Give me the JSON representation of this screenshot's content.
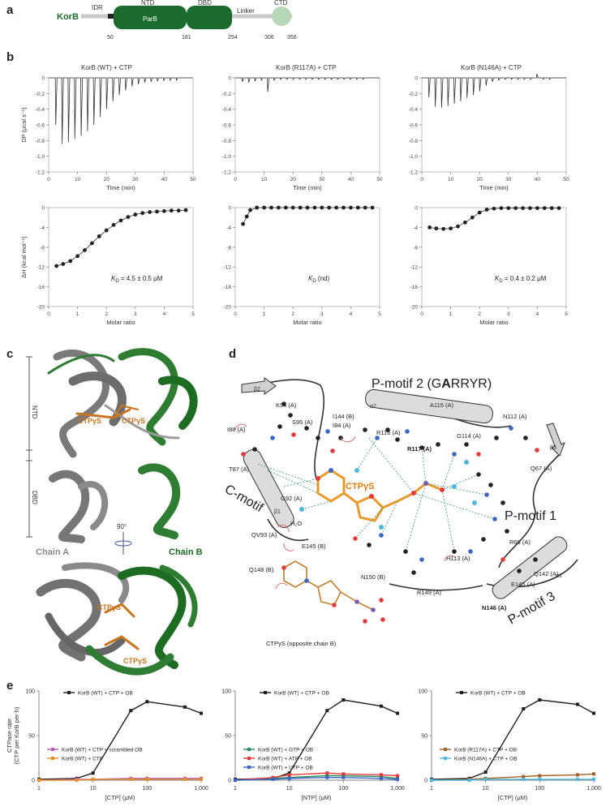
{
  "panels": {
    "a": "a",
    "b": "b",
    "c": "c",
    "d": "d",
    "e": "e"
  },
  "domain_panel": {
    "protein": "KorB",
    "segments": [
      {
        "name": "IDR",
        "kind": "line"
      },
      {
        "name": "NTD",
        "sub": "ParB",
        "kind": "box"
      },
      {
        "name": "DBD",
        "kind": "box"
      },
      {
        "name": "Linker",
        "kind": "line"
      },
      {
        "name": "CTD",
        "kind": "circle"
      }
    ],
    "positions": [
      {
        "label": "50",
        "value": 50
      },
      {
        "label": "181",
        "value": 181
      },
      {
        "label": "254",
        "value": 254
      },
      {
        "label": "306",
        "value": 306
      },
      {
        "label": "358",
        "value": 358
      }
    ]
  },
  "itc_titles": [
    "KorB (WT) + CTP",
    "KorB (R117A) + CTP",
    "KorB (N146A) + CTP"
  ],
  "itc_raw_axes": {
    "ylabel": "DP (μcal s⁻¹)",
    "xlabel": "Time (min)",
    "yticks": [
      "0",
      "-0.2",
      "-0.4",
      "-0.6",
      "-0.8",
      "-1.0",
      "-1.2"
    ],
    "xticks": [
      "0",
      "10",
      "20",
      "30",
      "40",
      "50"
    ]
  },
  "itc_iso_axes": {
    "ylabel": "ΔH (kcal mol⁻¹)",
    "xlabel": "Molar ratio",
    "yticks": [
      "0",
      "-4",
      "-8",
      "-12",
      "-16",
      "-20"
    ],
    "xticks": [
      "0",
      "1",
      "2",
      "3",
      "4",
      "5"
    ]
  },
  "kd_labels": [
    {
      "k": "K",
      "sub": "D",
      "rest": " = 4.5 ± 0.5 μM"
    },
    {
      "k": "K",
      "sub": "D",
      "rest": " (nd)"
    },
    {
      "k": "K",
      "sub": "D",
      "rest": " = 0.4 ± 0.2 μM"
    }
  ],
  "structure": {
    "ntd": "NTD",
    "dbd": "DBD",
    "ctp1": "CTPγS",
    "ctp2": "CTPγS",
    "ctp3": "CTPγS",
    "ctp4": "CTPγS",
    "rot": "90°",
    "chainA": "Chain A",
    "chainB": "Chain B"
  },
  "interaction_map": {
    "motif2_prefix": "P-motif 2 (G",
    "motif2_bold": "A",
    "motif2_suffix": "RRYR)",
    "motif1": "P-motif 1",
    "motif3": "P-motif 3",
    "cmotif": "C-motif",
    "ctp": "CTPγS",
    "ctp_opp": "CTPγS (opposite chain B)",
    "water": "H₂O",
    "helix_labels": [
      "β2",
      "α2",
      "β1",
      "α1",
      "β3"
    ],
    "residues": [
      "K94 (A)",
      "I88 (A)",
      "S95 (A)",
      "I144 (B)",
      "I84 (A)",
      "A115 (A)",
      "N112 (A)",
      "R116 (A)",
      "R117 (A)",
      "G114 (A)",
      "T87 (A)",
      "Q67 (A)",
      "G92 (A)",
      "QV93 (A)",
      "E145 (B)",
      "R69 (A)",
      "Q148 (B)",
      "H113 (A)",
      "N150 (B)",
      "Q142 (A)",
      "E145 (A)",
      "R149 (A)",
      "N146 (A)"
    ]
  },
  "chart_data": [
    {
      "type": "line",
      "ylabel": "CTPase rate\n(CTP per KorB per h)",
      "xlabel": "[CTP] (μM)",
      "xscale": "log",
      "xlim": [
        1,
        1000
      ],
      "ylim": [
        0,
        100
      ],
      "xticks": [
        "1",
        "10",
        "100",
        "1,000"
      ],
      "yticks": [
        "0",
        "50",
        "100"
      ],
      "series": [
        {
          "name": "KorB (WT) + CTP + OB",
          "color": "#1f1f1f",
          "x": [
            1,
            5,
            10,
            50,
            100,
            500,
            1000
          ],
          "y": [
            1,
            2,
            8,
            78,
            88,
            82,
            75
          ]
        },
        {
          "name": "KorB (WT) + CTP + scrambled OB",
          "color": "#b659b6",
          "x": [
            1,
            5,
            10,
            50,
            100,
            500,
            1000
          ],
          "y": [
            0,
            1,
            1,
            2,
            2,
            2,
            2
          ]
        },
        {
          "name": "KorB (WT) + CTP",
          "color": "#e8912c",
          "x": [
            1,
            5,
            10,
            50,
            100,
            500,
            1000
          ],
          "y": [
            0,
            0,
            1,
            1,
            1,
            1,
            1
          ]
        }
      ]
    },
    {
      "type": "line",
      "xlabel": "[NTP] (μM)",
      "xscale": "log",
      "xlim": [
        1,
        1000
      ],
      "ylim": [
        0,
        100
      ],
      "xticks": [
        "1",
        "10",
        "100",
        "1,000"
      ],
      "yticks": [
        "0",
        "50",
        "100"
      ],
      "series": [
        {
          "name": "KorB (WT) + CTP + OB",
          "color": "#1f1f1f",
          "x": [
            1,
            5,
            10,
            50,
            100,
            500,
            1000
          ],
          "y": [
            1,
            2,
            8,
            78,
            90,
            83,
            75
          ]
        },
        {
          "name": "KorB (WT) + GTP + OB",
          "color": "#2e8b57",
          "x": [
            1,
            5,
            10,
            50,
            100,
            500,
            1000
          ],
          "y": [
            0,
            2,
            3,
            5,
            5,
            4,
            2
          ]
        },
        {
          "name": "KorB (WT) + ATP + OB",
          "color": "#e23b3b",
          "x": [
            1,
            5,
            10,
            50,
            100,
            500,
            1000
          ],
          "y": [
            0,
            3,
            6,
            8,
            7,
            6,
            5
          ]
        },
        {
          "name": "KorB (WT) + UTP + OB",
          "color": "#3a66c4",
          "x": [
            1,
            5,
            10,
            50,
            100,
            500,
            1000
          ],
          "y": [
            0,
            1,
            2,
            3,
            3,
            2,
            1
          ]
        }
      ]
    },
    {
      "type": "line",
      "xlabel": "[CTP] (μM)",
      "xscale": "log",
      "xlim": [
        1,
        1000
      ],
      "ylim": [
        0,
        100
      ],
      "xticks": [
        "1",
        "10",
        "100",
        "1,000"
      ],
      "yticks": [
        "0",
        "50",
        "100"
      ],
      "series": [
        {
          "name": "KorB (WT) + CTP + OB",
          "color": "#1f1f1f",
          "x": [
            1,
            5,
            10,
            50,
            100,
            500,
            1000
          ],
          "y": [
            1,
            2,
            9,
            80,
            90,
            85,
            75
          ]
        },
        {
          "name": "KorB (R117A) + CTP + OB",
          "color": "#a0602a",
          "x": [
            1,
            5,
            10,
            50,
            100,
            500,
            1000
          ],
          "y": [
            0,
            1,
            2,
            4,
            5,
            6,
            7
          ]
        },
        {
          "name": "KorB (N146A) + CTP + OB",
          "color": "#4fb8d8",
          "x": [
            1,
            5,
            10,
            50,
            100,
            500,
            1000
          ],
          "y": [
            0,
            0,
            1,
            1,
            1,
            1,
            1
          ]
        }
      ]
    }
  ]
}
